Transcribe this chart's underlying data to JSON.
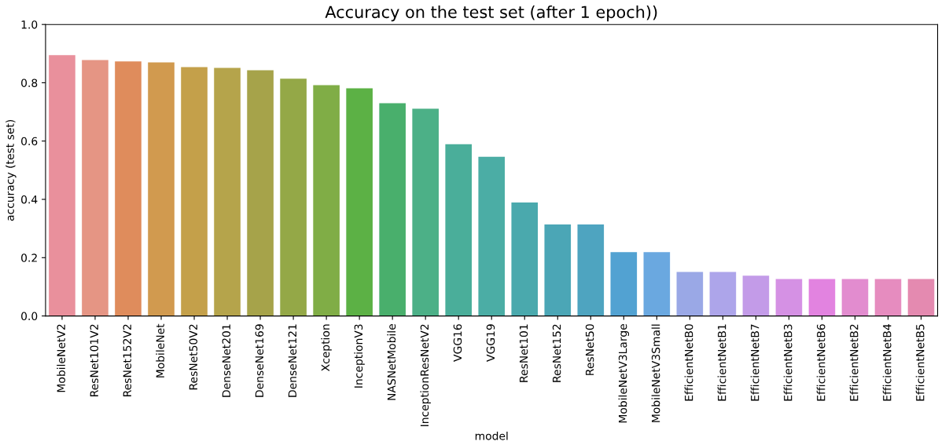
{
  "chart_data": {
    "type": "bar",
    "title": "Accuracy on the test set (after 1 epoch))",
    "xlabel": "model",
    "ylabel": "accuracy (test set)",
    "categories": [
      "MobileNetV2",
      "ResNet101V2",
      "ResNet152V2",
      "MobileNet",
      "ResNet50V2",
      "DenseNet201",
      "DenseNet169",
      "DenseNet121",
      "Xception",
      "InceptionV3",
      "NASNetMobile",
      "InceptionResNetV2",
      "VGG16",
      "VGG19",
      "ResNet101",
      "ResNet152",
      "ResNet50",
      "MobileNetV3Large",
      "MobileNetV3Small",
      "EfficientNetB0",
      "EfficientNetB1",
      "EfficientNetB7",
      "EfficientNetB3",
      "EfficientNetB6",
      "EfficientNetB2",
      "EfficientNetB4",
      "EfficientNetB5"
    ],
    "values": [
      0.895,
      0.878,
      0.873,
      0.87,
      0.854,
      0.851,
      0.843,
      0.814,
      0.792,
      0.781,
      0.73,
      0.711,
      0.589,
      0.546,
      0.389,
      0.314,
      0.314,
      0.219,
      0.219,
      0.151,
      0.151,
      0.138,
      0.127,
      0.127,
      0.127,
      0.127,
      0.127
    ],
    "colors": [
      "#e9909c",
      "#e59584",
      "#df8c5c",
      "#d19a4f",
      "#c4a04a",
      "#b5a44b",
      "#a6a34a",
      "#94a847",
      "#80ad46",
      "#5cb145",
      "#49af6c",
      "#4cb087",
      "#4aae9a",
      "#4bada5",
      "#4aa9ad",
      "#4ba6b6",
      "#4ea4c0",
      "#52a2d2",
      "#6aa8e0",
      "#9aa8e6",
      "#ada5ea",
      "#c39be8",
      "#d591e4",
      "#e283e0",
      "#e28ccf",
      "#e68cbf",
      "#e48ab0"
    ],
    "ylim": [
      0,
      1.0
    ],
    "yticks": [
      {
        "value": 0,
        "label": "0.0"
      },
      {
        "value": 0.2,
        "label": "0.2"
      },
      {
        "value": 0.4,
        "label": "0.4"
      },
      {
        "value": 0.6,
        "label": "0.6"
      },
      {
        "value": 0.8,
        "label": "0.8"
      },
      {
        "value": 1.0,
        "label": "1.0"
      }
    ],
    "grid": false,
    "legend": false
  }
}
